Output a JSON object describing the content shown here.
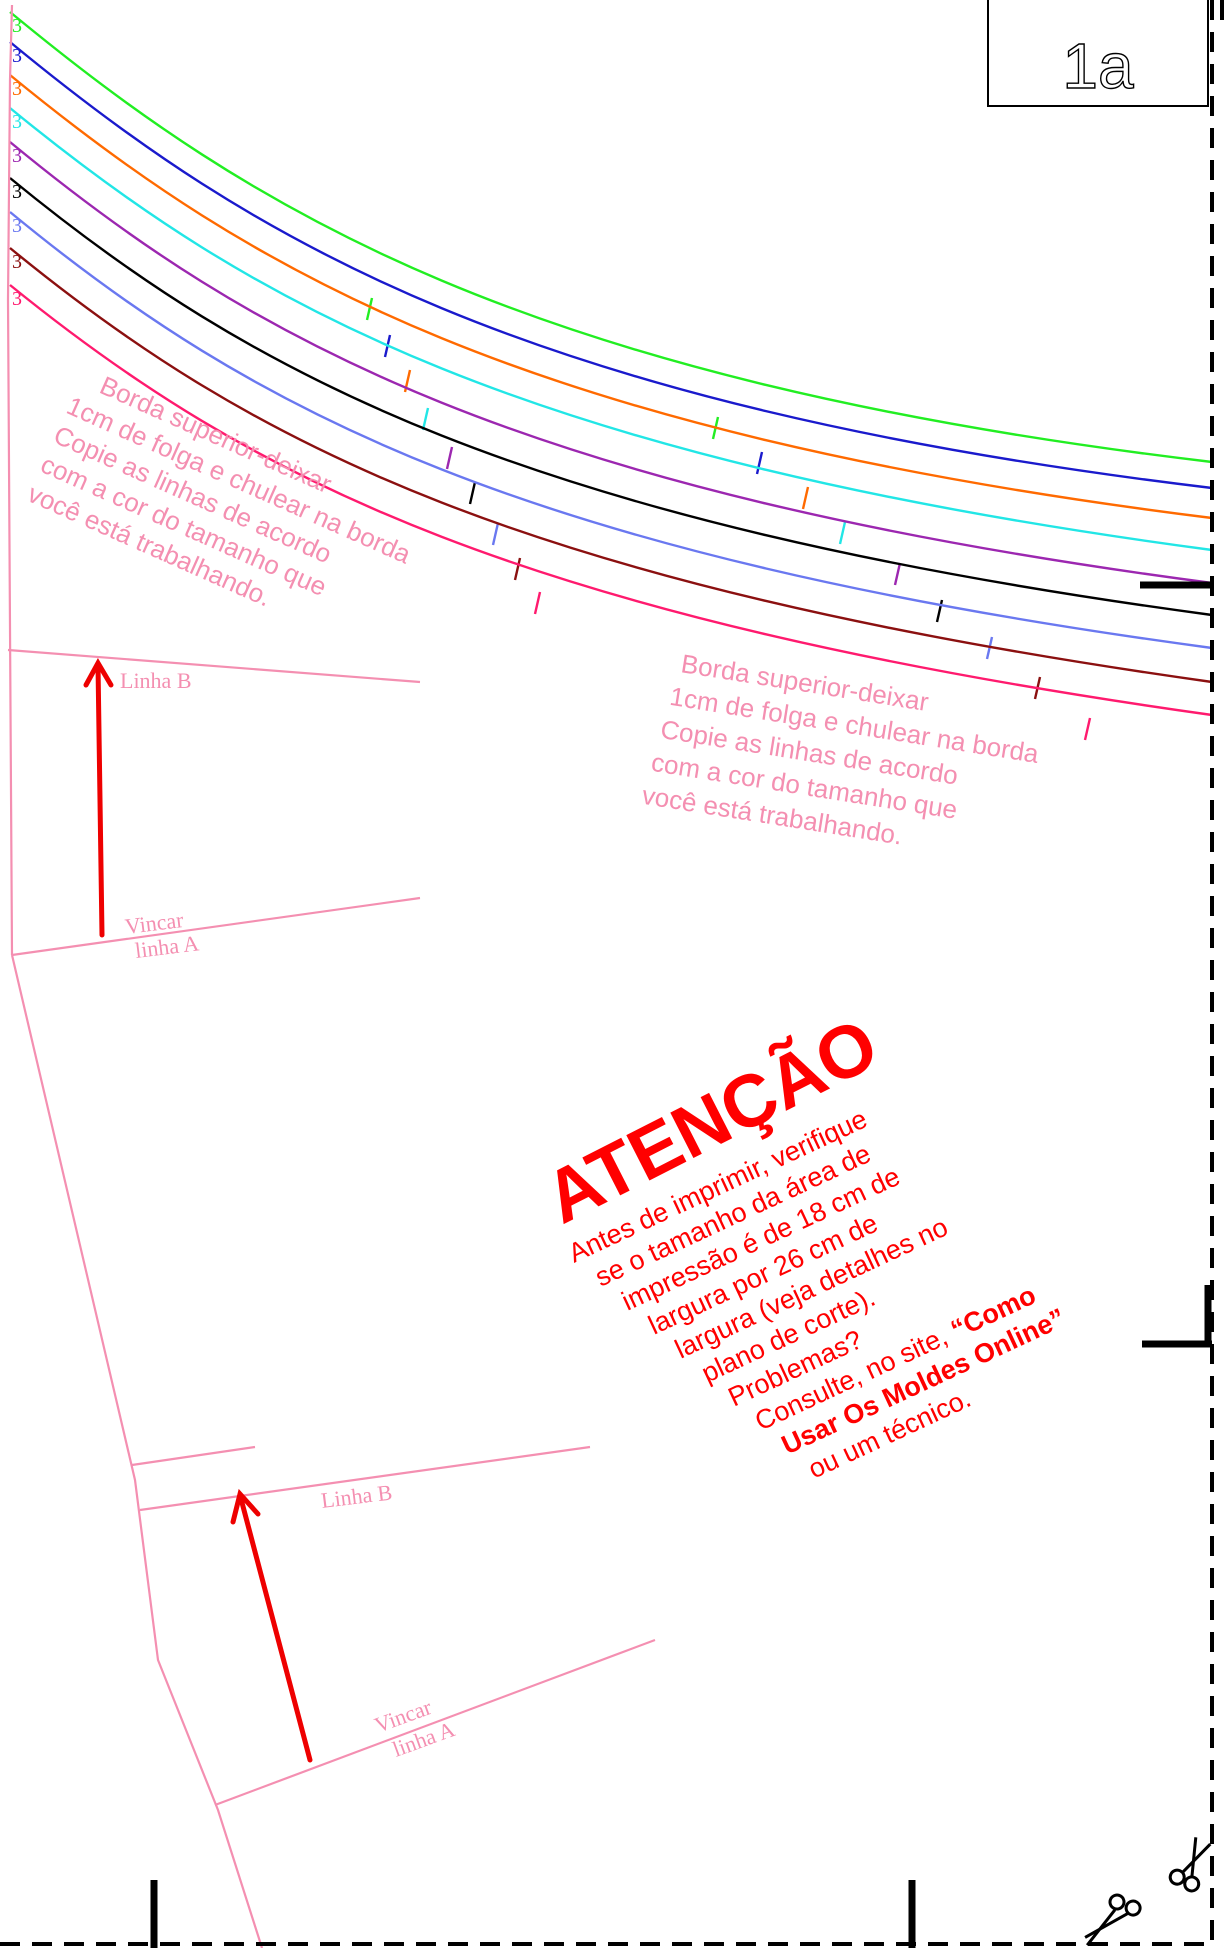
{
  "piece_label": "1a",
  "size_lines": [
    {
      "color": "#22ee22",
      "number": "3"
    },
    {
      "color": "#1a1acc",
      "number": "3"
    },
    {
      "color": "#ff6a00",
      "number": "3"
    },
    {
      "color": "#22e6e6",
      "number": "3"
    },
    {
      "color": "#9c27b0",
      "number": "3"
    },
    {
      "color": "#000000",
      "number": "3"
    },
    {
      "color": "#6a78f0",
      "number": "3"
    },
    {
      "color": "#8b1010",
      "number": "3"
    },
    {
      "color": "#ff1a6e",
      "number": "3"
    }
  ],
  "notes": {
    "top_left": [
      "Borda superior-deixar",
      "1cm de folga e chulear na borda",
      "Copie as linhas de acordo",
      "com a cor do tamanho que",
      "você está trabalhando."
    ],
    "top_right": [
      "Borda superior-deixar",
      "1cm de folga e chulear na borda",
      "Copie as linhas de acordo",
      "com a cor do tamanho que",
      "você está trabalhando."
    ]
  },
  "fold_marks": {
    "upper": {
      "line_b": "Linha B",
      "vincar": "Vincar",
      "line_a": "linha A"
    },
    "lower": {
      "line_b": "Linha B",
      "vincar": "Vincar",
      "line_a": "linha A"
    }
  },
  "warning": {
    "title": "ATENÇÃO",
    "lines": [
      "Antes de imprimir, verifique",
      "se o tamanho da área de",
      "impressão é de 18 cm de",
      "largura por 26 cm de",
      "largura (veja detalhes no",
      "plano de corte).",
      "Problemas?"
    ],
    "consult_prefix": "Consulte, no site, ",
    "consult_bold": "“Como",
    "bold_line": "Usar Os Moldes Online”",
    "last_line": "ou um técnico."
  },
  "colors": {
    "pattern_outline": "#f48fb1",
    "arrow": "#ee0000",
    "warning_text": "#ff0000"
  },
  "icons": [
    "scissors-icon",
    "scissors-icon"
  ]
}
